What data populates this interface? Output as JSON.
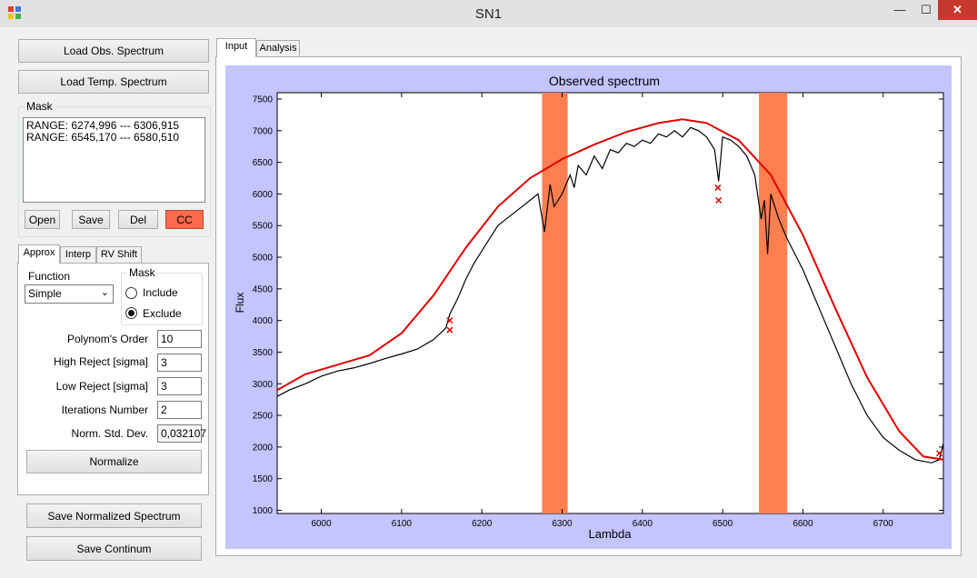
{
  "window": {
    "title": "SN1",
    "minimize": "—",
    "maximize": "☐",
    "close": "✕"
  },
  "buttons": {
    "load_obs": "Load Obs. Spectrum",
    "load_temp": "Load Temp. Spectrum",
    "open": "Open",
    "save": "Save",
    "del": "Del",
    "cc": "CC",
    "normalize": "Normalize",
    "save_norm": "Save Normalized Spectrum",
    "save_cont": "Save Continum"
  },
  "mask": {
    "legend": "Mask",
    "ranges": [
      "RANGE: 6274,996 --- 6306,915",
      "RANGE: 6545,170 --- 6580,510"
    ]
  },
  "left_tabs": [
    "Approx",
    "Interp",
    "RV Shift"
  ],
  "approx": {
    "function_label": "Function",
    "function_value": "Simple",
    "mask_legend": "Mask",
    "include_label": "Include",
    "exclude_label": "Exclude",
    "selected": "Exclude",
    "fields": [
      {
        "label": "Polynom's Order",
        "value": "10"
      },
      {
        "label": "High Reject [sigma]",
        "value": "3"
      },
      {
        "label": "Low Reject [sigma]",
        "value": "3"
      },
      {
        "label": "Iterations Number",
        "value": "2"
      },
      {
        "label": "Norm. Std. Dev.",
        "value": "0,032107"
      }
    ]
  },
  "main_tabs": [
    "Input",
    "Analysis"
  ],
  "colors": {
    "plot_bg": "#c4c4ff",
    "mask_band": "#ff7f50",
    "continuum": "#e00000",
    "cc_button": "#ff6a4d"
  },
  "chart_data": {
    "type": "line",
    "title": "Observed spectrum",
    "xlabel": "Lambda",
    "ylabel": "Flux",
    "xlim": [
      5945,
      6775
    ],
    "ylim": [
      950,
      7600
    ],
    "xticks": [
      6000,
      6100,
      6200,
      6300,
      6400,
      6500,
      6600,
      6700
    ],
    "yticks": [
      1000,
      1500,
      2000,
      2500,
      3000,
      3500,
      4000,
      4500,
      5000,
      5500,
      6000,
      6500,
      7000,
      7500
    ],
    "mask_bands": [
      [
        6274.996,
        6306.915
      ],
      [
        6545.17,
        6580.51
      ]
    ],
    "series": [
      {
        "name": "observed",
        "color": "#000000",
        "x": [
          5945,
          5960,
          5980,
          6000,
          6020,
          6040,
          6060,
          6080,
          6100,
          6120,
          6140,
          6155,
          6160,
          6170,
          6180,
          6190,
          6200,
          6210,
          6220,
          6230,
          6240,
          6250,
          6260,
          6270,
          6278,
          6285,
          6290,
          6300,
          6310,
          6315,
          6320,
          6330,
          6340,
          6350,
          6360,
          6370,
          6380,
          6390,
          6400,
          6410,
          6420,
          6430,
          6440,
          6450,
          6460,
          6470,
          6480,
          6490,
          6495,
          6500,
          6510,
          6520,
          6530,
          6540,
          6548,
          6552,
          6556,
          6560,
          6565,
          6570,
          6580,
          6600,
          6620,
          6640,
          6660,
          6680,
          6700,
          6720,
          6740,
          6760,
          6770,
          6775
        ],
        "y": [
          2800,
          2900,
          3000,
          3120,
          3200,
          3250,
          3320,
          3400,
          3470,
          3550,
          3700,
          3880,
          4100,
          4350,
          4650,
          4900,
          5100,
          5300,
          5500,
          5600,
          5700,
          5800,
          5900,
          6000,
          5400,
          6150,
          5800,
          6000,
          6300,
          6100,
          6450,
          6300,
          6600,
          6400,
          6700,
          6650,
          6800,
          6750,
          6850,
          6800,
          6950,
          6900,
          7000,
          6900,
          7050,
          7000,
          6900,
          6700,
          6200,
          6900,
          6850,
          6750,
          6600,
          6300,
          5600,
          5900,
          5050,
          6000,
          5800,
          5600,
          5300,
          4800,
          4200,
          3600,
          3000,
          2500,
          2150,
          1950,
          1800,
          1750,
          1800,
          2050
        ]
      },
      {
        "name": "continuum",
        "color": "#e00000",
        "x": [
          5945,
          5980,
          6020,
          6060,
          6100,
          6140,
          6180,
          6220,
          6260,
          6300,
          6340,
          6380,
          6420,
          6450,
          6480,
          6520,
          6560,
          6600,
          6640,
          6680,
          6720,
          6750,
          6775
        ],
        "y": [
          2900,
          3150,
          3300,
          3450,
          3800,
          4400,
          5150,
          5800,
          6250,
          6550,
          6780,
          6980,
          7120,
          7180,
          7120,
          6850,
          6300,
          5350,
          4200,
          3100,
          2250,
          1850,
          1800
        ]
      }
    ],
    "rejected_points": [
      [
        6160,
        4000
      ],
      [
        6160,
        3850
      ],
      [
        6494,
        6100
      ],
      [
        6495,
        5900
      ],
      [
        6770,
        1900
      ]
    ]
  }
}
